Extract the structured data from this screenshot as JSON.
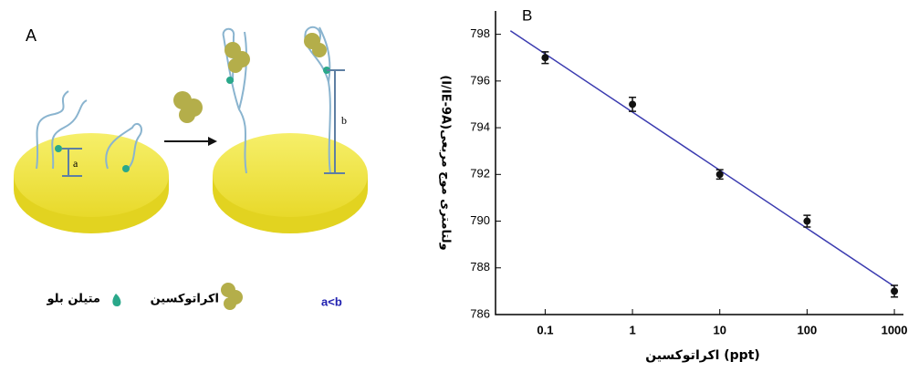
{
  "diagram": {
    "panel_label": "A",
    "label_a": "a",
    "label_b": "b",
    "legend_methylene_blue": "متیلن بلو",
    "legend_ochratoxin": "اکراتوکسین",
    "relation": "a<b"
  },
  "chart_data": {
    "type": "scatter",
    "panel_label": "B",
    "x_label": "اکراتوکسین (ppt)",
    "y_label": "(I/IE-9A)ولتامتری موج مربعی",
    "x": [
      0.1,
      1,
      10,
      100,
      1000
    ],
    "series": [
      {
        "color": "#111111",
        "values": [
          797,
          795,
          792,
          790,
          787
        ],
        "errors": [
          0.25,
          0.3,
          0.2,
          0.25,
          0.25
        ]
      }
    ],
    "fit": {
      "color": "#3b3bb0",
      "x": [
        0.04,
        1000
      ],
      "values": [
        798.15,
        787.2
      ]
    },
    "xlog": true,
    "xlim": [
      0.027,
      1270
    ],
    "xticks": [
      0.1,
      1,
      10,
      100,
      1000
    ],
    "ylim": [
      786,
      799
    ],
    "yticks": [
      786,
      788,
      790,
      792,
      794,
      796,
      798
    ]
  }
}
